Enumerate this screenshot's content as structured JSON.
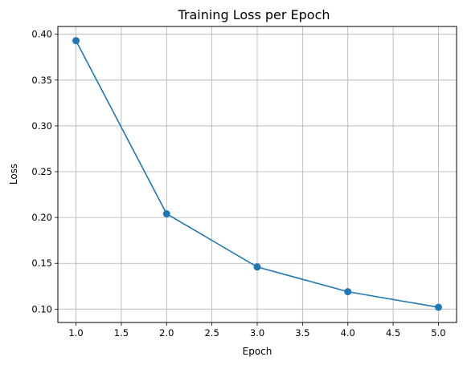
{
  "chart_data": {
    "type": "line",
    "title": "Training Loss per Epoch",
    "xlabel": "Epoch",
    "ylabel": "Loss",
    "xlim": [
      0.8,
      5.2
    ],
    "ylim": [
      0.0854,
      0.4085
    ],
    "x_ticks": [
      1.0,
      1.5,
      2.0,
      2.5,
      3.0,
      3.5,
      4.0,
      4.5,
      5.0
    ],
    "y_ticks": [
      0.1,
      0.15,
      0.2,
      0.25,
      0.3,
      0.35,
      0.4
    ],
    "x_tick_labels": [
      "1.0",
      "1.5",
      "2.0",
      "2.5",
      "3.0",
      "3.5",
      "4.0",
      "4.5",
      "5.0"
    ],
    "y_tick_labels": [
      "0.10",
      "0.15",
      "0.20",
      "0.25",
      "0.30",
      "0.35",
      "0.40"
    ],
    "grid": true,
    "series": [
      {
        "color": "#1f77b4",
        "marker": "circle",
        "x": [
          1,
          2,
          3,
          4,
          5
        ],
        "y": [
          0.393,
          0.204,
          0.146,
          0.119,
          0.102
        ]
      }
    ]
  }
}
